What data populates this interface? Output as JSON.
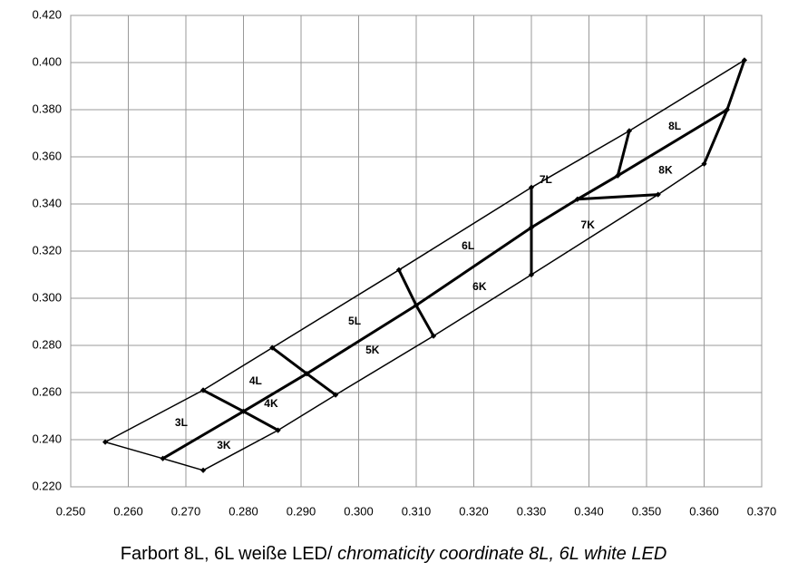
{
  "chart_data": {
    "type": "line",
    "caption": "Farbort 8L, 6L weiße LED/ ",
    "caption_italic": "chromaticity coordinate 8L, 6L white LED",
    "color": "#000000",
    "grid": true,
    "xlim": [
      0.25,
      0.37
    ],
    "ylim": [
      0.22,
      0.42
    ],
    "xticks": [
      {
        "value": 0.25,
        "label": "0.250"
      },
      {
        "value": 0.26,
        "label": "0.260"
      },
      {
        "value": 0.27,
        "label": "0.270"
      },
      {
        "value": 0.28,
        "label": "0.280"
      },
      {
        "value": 0.29,
        "label": "0.290"
      },
      {
        "value": 0.3,
        "label": "0.300"
      },
      {
        "value": 0.31,
        "label": "0.310"
      },
      {
        "value": 0.32,
        "label": "0.320"
      },
      {
        "value": 0.33,
        "label": "0.330"
      },
      {
        "value": 0.34,
        "label": "0.340"
      },
      {
        "value": 0.35,
        "label": "0.350"
      },
      {
        "value": 0.36,
        "label": "0.360"
      },
      {
        "value": 0.37,
        "label": "0.370"
      }
    ],
    "yticks": [
      {
        "value": 0.22,
        "label": "0.220"
      },
      {
        "value": 0.24,
        "label": "0.240"
      },
      {
        "value": 0.26,
        "label": "0.260"
      },
      {
        "value": 0.28,
        "label": "0.280"
      },
      {
        "value": 0.3,
        "label": "0.300"
      },
      {
        "value": 0.32,
        "label": "0.320"
      },
      {
        "value": 0.34,
        "label": "0.340"
      },
      {
        "value": 0.36,
        "label": "0.360"
      },
      {
        "value": 0.38,
        "label": "0.380"
      },
      {
        "value": 0.4,
        "label": "0.400"
      },
      {
        "value": 0.42,
        "label": "0.420"
      }
    ],
    "series": [
      {
        "line_width": 1.5,
        "x": [
          0.256,
          0.273,
          0.285,
          0.307,
          0.33,
          0.347,
          0.367
        ],
        "y": [
          0.239,
          0.261,
          0.279,
          0.312,
          0.347,
          0.371,
          0.401
        ]
      },
      {
        "line_width": 3,
        "x": [
          0.266,
          0.28,
          0.291,
          0.31,
          0.33,
          0.338,
          0.345,
          0.364
        ],
        "y": [
          0.232,
          0.252,
          0.268,
          0.297,
          0.33,
          0.342,
          0.352,
          0.38
        ]
      },
      {
        "line_width": 1.5,
        "x": [
          0.273,
          0.286,
          0.296,
          0.313,
          0.33,
          0.352,
          0.36
        ],
        "y": [
          0.227,
          0.244,
          0.259,
          0.284,
          0.31,
          0.344,
          0.357
        ]
      },
      {
        "line_width": 3,
        "x": [
          0.367,
          0.364,
          0.36
        ],
        "y": [
          0.401,
          0.38,
          0.357
        ]
      },
      {
        "line_width": 1.5,
        "x": [
          0.256,
          0.266,
          0.273
        ],
        "y": [
          0.239,
          0.232,
          0.227
        ]
      },
      {
        "line_width": 3,
        "x": [
          0.273,
          0.28,
          0.286
        ],
        "y": [
          0.261,
          0.252,
          0.244
        ]
      },
      {
        "line_width": 3,
        "x": [
          0.285,
          0.291,
          0.296
        ],
        "y": [
          0.279,
          0.268,
          0.259
        ]
      },
      {
        "line_width": 3,
        "x": [
          0.307,
          0.31,
          0.313
        ],
        "y": [
          0.312,
          0.297,
          0.284
        ]
      },
      {
        "line_width": 3,
        "x": [
          0.33,
          0.33,
          0.33
        ],
        "y": [
          0.347,
          0.33,
          0.31
        ]
      },
      {
        "line_width": 3,
        "x": [
          0.347,
          0.345
        ],
        "y": [
          0.371,
          0.352
        ]
      },
      {
        "line_width": 3,
        "x": [
          0.338,
          0.352
        ],
        "y": [
          0.342,
          0.344
        ]
      }
    ],
    "annotations": [
      {
        "text": "3L",
        "x": 0.2692,
        "y": 0.247
      },
      {
        "text": "3K",
        "x": 0.2766,
        "y": 0.2373
      },
      {
        "text": "4L",
        "x": 0.2821,
        "y": 0.2646
      },
      {
        "text": "4K",
        "x": 0.2848,
        "y": 0.255
      },
      {
        "text": "5L",
        "x": 0.2993,
        "y": 0.29
      },
      {
        "text": "5K",
        "x": 0.3024,
        "y": 0.2777
      },
      {
        "text": "6L",
        "x": 0.319,
        "y": 0.3219
      },
      {
        "text": "6K",
        "x": 0.321,
        "y": 0.3046
      },
      {
        "text": "7L",
        "x": 0.3325,
        "y": 0.35
      },
      {
        "text": "7K",
        "x": 0.3398,
        "y": 0.3308
      },
      {
        "text": "8K",
        "x": 0.3533,
        "y": 0.3542
      },
      {
        "text": "8L",
        "x": 0.3549,
        "y": 0.3727
      }
    ]
  }
}
